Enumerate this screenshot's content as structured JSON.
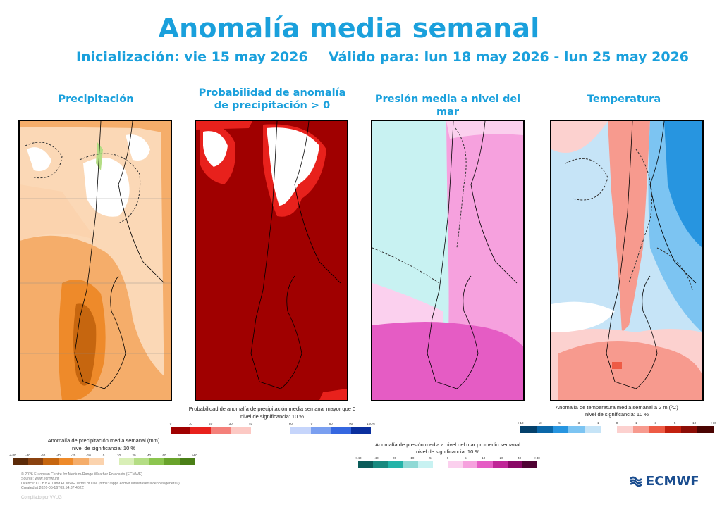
{
  "title": "Anomalía media semanal",
  "init_label": "Inicialización: vie 15 may 2026",
  "valid_label": "Válido para: lun 18 may 2026 - lun 25 may 2026",
  "panels": [
    {
      "title": "Precipitación"
    },
    {
      "title": "Probabilidad de anomalía de precipitación > 0"
    },
    {
      "title": "Presión media a nivel del mar"
    },
    {
      "title": "Temperatura"
    }
  ],
  "colorbars": {
    "precip": {
      "title_lines": [
        "Anomalía de precipitación media semanal (mm)",
        "nivel de significancia: 10 %"
      ],
      "colors": [
        "#5c2a08",
        "#8a4210",
        "#c6660f",
        "#ee8a2a",
        "#f5ad6a",
        "#fbd3ae",
        "#ffffff",
        "#d9efb7",
        "#b4dd84",
        "#8cc54f",
        "#69a32b",
        "#4a7f17"
      ],
      "ticks": [
        "<-80",
        "-80",
        "-60",
        "-40",
        "-20",
        "-10",
        "0",
        "10",
        "20",
        "40",
        "60",
        "80",
        ">80"
      ]
    },
    "prob": {
      "title_lines": [
        "Probabilidad de anomalía de precipitación media semanal mayor que 0",
        "nivel de significancia: 10 %"
      ],
      "colors": [
        "#a00000",
        "#e8211c",
        "#f4807a",
        "#fcc9c4",
        "#ffffff",
        "#ffffff",
        "#c6d5fb",
        "#7a9ff0",
        "#3567e0",
        "#0a2f9e"
      ],
      "ticks": [
        "0",
        "10",
        "20",
        "30",
        "40",
        "",
        "60",
        "70",
        "80",
        "90",
        "100%"
      ]
    },
    "pressure": {
      "title_lines": [
        "Anomalía de presión media a nivel del mar promedio semanal",
        "nivel de significancia: 10 %"
      ],
      "colors": [
        "#0b5c5a",
        "#17897f",
        "#24b3a8",
        "#8fd9d5",
        "#c8f2f2",
        "#ffffff",
        "#fbd0ee",
        "#f6a1de",
        "#e55cc4",
        "#c02597",
        "#8a0866",
        "#4f0233"
      ],
      "ticks": [
        "<-40",
        "-40",
        "-20",
        "-10",
        "-5",
        "0",
        "5",
        "10",
        "20",
        "40",
        ">40"
      ]
    },
    "temp": {
      "title_lines": [
        "Anomalía de temperatura media semanal a 2 m (ºC)",
        "nivel de significancia: 10 %"
      ],
      "colors": [
        "#04406b",
        "#0a67a8",
        "#2795e0",
        "#7cc4f2",
        "#c6e4f7",
        "#ffffff",
        "#fcd1cf",
        "#f79a8e",
        "#ee5b45",
        "#c2200e",
        "#8c0d06",
        "#4a0402"
      ],
      "ticks": [
        "<-10",
        "-10",
        "-5",
        "-3",
        "-1",
        "0",
        "1",
        "3",
        "5",
        "10",
        ">10"
      ]
    }
  },
  "credits": [
    "© 2026 European Centre for Medium-Range Weather Forecasts (ECMWF)",
    "Source: www.ecmwf.int",
    "Licence: CC BY 4.0 and ECMWF Terms of Use (https://apps.ecmwf.int/datasets/licences/general/)",
    "Created at 2026-05-16T03:54:37.462Z"
  ],
  "compiled": "Compilado por VVUG",
  "logo_text": "ECMWF"
}
